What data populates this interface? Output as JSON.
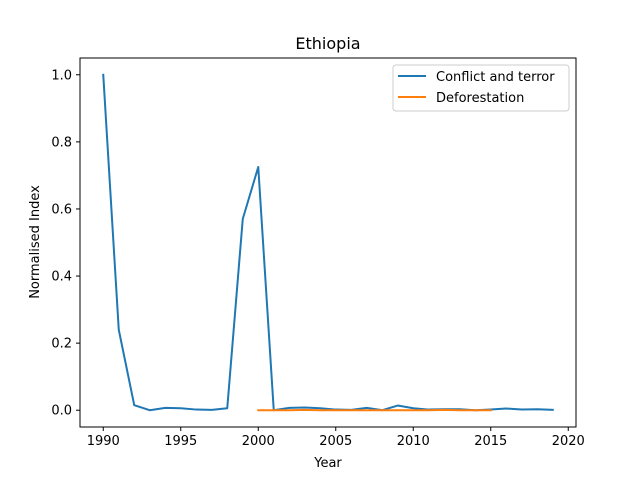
{
  "chart_data": {
    "type": "line",
    "title": "Ethiopia",
    "xlabel": "Year",
    "ylabel": "Normalised Index",
    "xlim": [
      1988.5,
      2020.5
    ],
    "ylim": [
      -0.05,
      1.05
    ],
    "xticks": [
      1990,
      1995,
      2000,
      2005,
      2010,
      2015,
      2020
    ],
    "yticks": [
      0.0,
      0.2,
      0.4,
      0.6,
      0.8,
      1.0
    ],
    "xtick_labels": [
      "1990",
      "1995",
      "2000",
      "2005",
      "2010",
      "2015",
      "2020"
    ],
    "ytick_labels": [
      "0.0",
      "0.2",
      "0.4",
      "0.6",
      "0.8",
      "1.0"
    ],
    "grid": false,
    "legend_position": "top-right",
    "series": [
      {
        "name": "Conflict and terror",
        "color": "#1f77b4",
        "x": [
          1990,
          1991,
          1992,
          1993,
          1994,
          1995,
          1996,
          1997,
          1998,
          1999,
          2000,
          2001,
          2002,
          2003,
          2004,
          2005,
          2006,
          2007,
          2008,
          2009,
          2010,
          2011,
          2012,
          2013,
          2014,
          2015,
          2016,
          2017,
          2018,
          2019
        ],
        "y": [
          1.0,
          0.24,
          0.015,
          0.0,
          0.007,
          0.006,
          0.002,
          0.001,
          0.006,
          0.57,
          0.725,
          0.0,
          0.007,
          0.008,
          0.006,
          0.002,
          0.001,
          0.007,
          0.0,
          0.014,
          0.006,
          0.002,
          0.003,
          0.003,
          0.0,
          0.002,
          0.005,
          0.002,
          0.003,
          0.001
        ]
      },
      {
        "name": "Deforestation",
        "color": "#ff7f0e",
        "x": [
          2000,
          2001,
          2002,
          2003,
          2004,
          2005,
          2006,
          2007,
          2008,
          2009,
          2010,
          2011,
          2012,
          2013,
          2014,
          2015
        ],
        "y": [
          0.0,
          0.0,
          0.0,
          0.001,
          0.0,
          0.0,
          0.0,
          0.0,
          0.0,
          0.0,
          0.0,
          0.0,
          0.001,
          0.0,
          0.0,
          0.0
        ]
      }
    ]
  }
}
